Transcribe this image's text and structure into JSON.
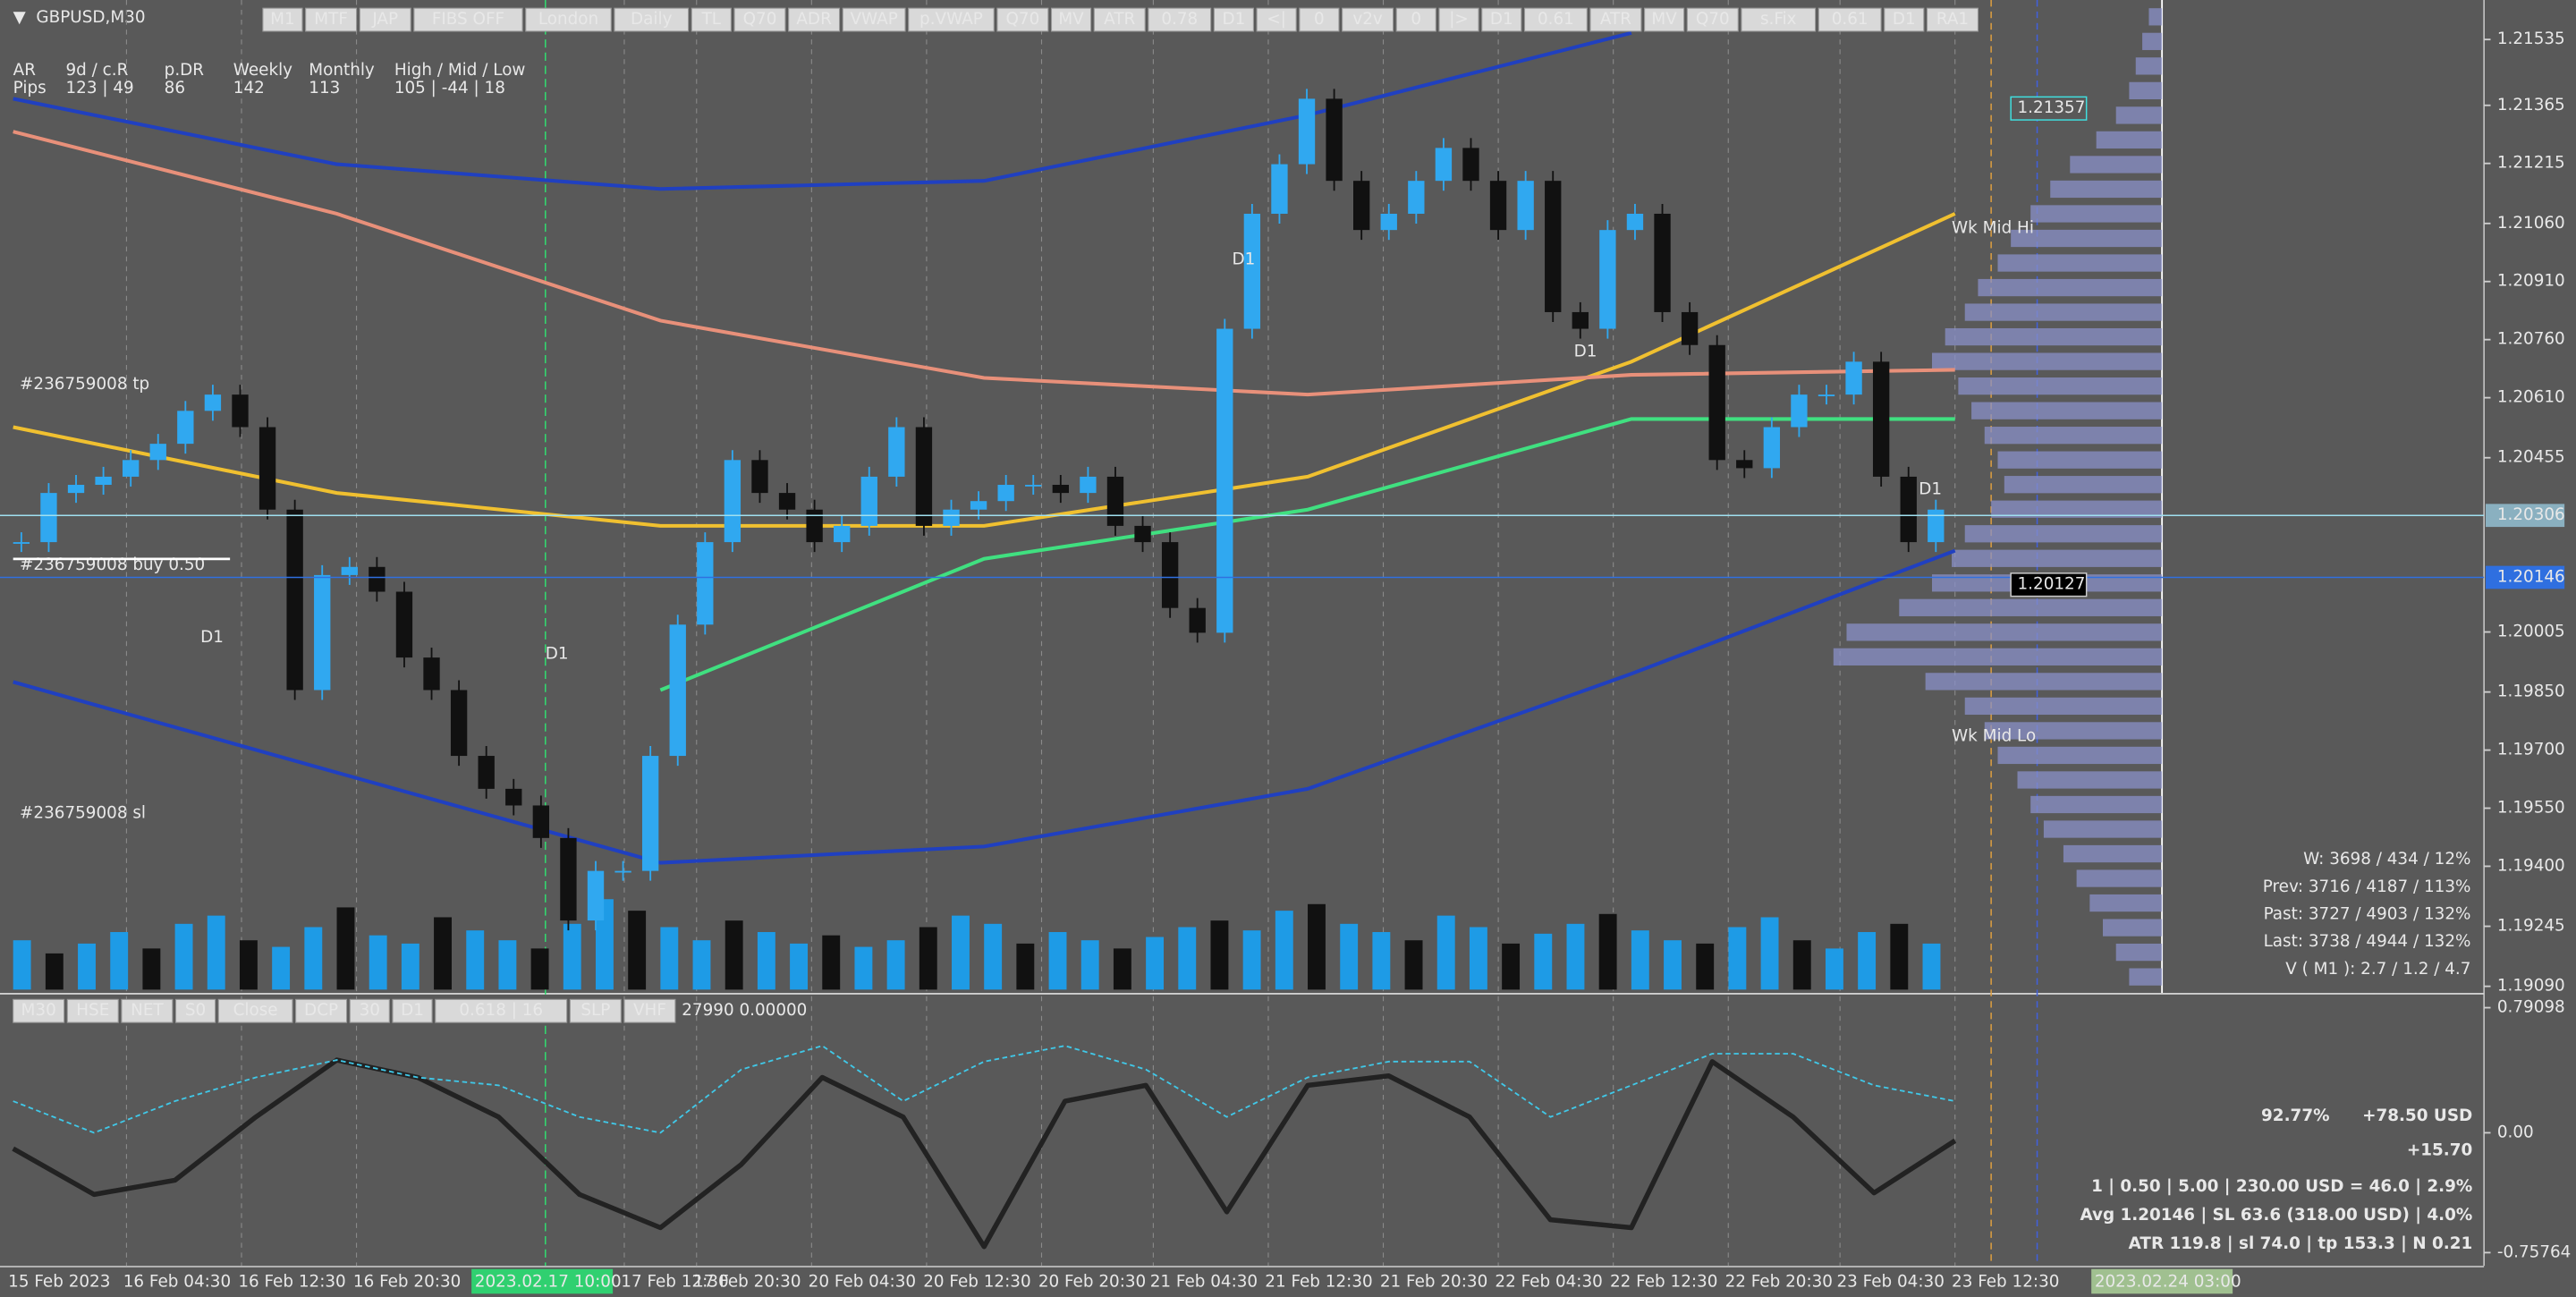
{
  "symbol": "GBPUSD,M30",
  "toolbar_top": [
    {
      "text": "M1",
      "color": "#000000"
    },
    {
      "text": "MTF",
      "color": "#777777"
    },
    {
      "text": "JAP",
      "color": "#d02020"
    },
    {
      "text": "FIBS OFF",
      "color": "#000000"
    },
    {
      "text": "London",
      "color": "#d02020"
    },
    {
      "text": "Daily",
      "color": "#d02020"
    },
    {
      "text": "TL",
      "color": "#000000"
    },
    {
      "text": "Q70",
      "color": "#000000"
    },
    {
      "text": "ADR",
      "color": "#d02020"
    },
    {
      "text": "VWAP",
      "color": "#d02020"
    },
    {
      "text": "p.VWAP",
      "color": "#000000"
    },
    {
      "text": "Q70",
      "color": "#1040d0"
    },
    {
      "text": "MV",
      "color": "#1040d0"
    },
    {
      "text": "ATR",
      "color": "#1040d0"
    },
    {
      "text": "0.78",
      "color": "#1040d0"
    },
    {
      "text": "D1",
      "color": "#1040d0"
    },
    {
      "text": "<|",
      "color": "#1040d0"
    },
    {
      "text": "0",
      "color": "#1040d0"
    },
    {
      "text": "v2v",
      "color": "#d02020"
    },
    {
      "text": "0",
      "color": "#108010"
    },
    {
      "text": "|>",
      "color": "#000000"
    },
    {
      "text": "D1",
      "color": "#108010"
    },
    {
      "text": "0.61",
      "color": "#108010"
    },
    {
      "text": "ATR",
      "color": "#108010"
    },
    {
      "text": "MV",
      "color": "#108010"
    },
    {
      "text": "Q70",
      "color": "#108010"
    },
    {
      "text": "s.Fix",
      "color": "#888888"
    },
    {
      "text": "0.61",
      "color": "#108010"
    },
    {
      "text": "D1",
      "color": "#d02020"
    },
    {
      "text": "RA1",
      "color": "#1040d0"
    }
  ],
  "toolbar_bottom": [
    {
      "text": "M30",
      "color": "#000000"
    },
    {
      "text": "HSE",
      "color": "#d02020"
    },
    {
      "text": "NET",
      "color": "#d02020"
    },
    {
      "text": "S0",
      "color": "#1040d0"
    },
    {
      "text": "Close",
      "color": "#1040d0"
    },
    {
      "text": "DCP",
      "color": "#777777"
    },
    {
      "text": "30",
      "color": "#000000"
    },
    {
      "text": "D1",
      "color": "#1040d0"
    },
    {
      "text": "0.618 | 16",
      "color": "#1040d0"
    },
    {
      "text": "SLP",
      "color": "#777777"
    },
    {
      "text": "VHF",
      "color": "#d02020"
    }
  ],
  "indicator_readout": "27990 0.00000",
  "stats": {
    "header": [
      "AR",
      "9d / c.R",
      "p.DR",
      "Weekly",
      "Monthly",
      "High / Mid / Low"
    ],
    "row": [
      "Pips",
      "123 | 49",
      "86",
      "142",
      "113",
      "105 | -44 | 18"
    ]
  },
  "annotations": {
    "tp": "#236759008 tp",
    "buy": "#236759008 buy 0.50",
    "sl": "#236759008 sl",
    "wk_mid_hi": "Wk Mid Hi",
    "wk_mid_lo": "Wk Mid Lo",
    "d1_labels": [
      "D1",
      "D1",
      "D1",
      "D1",
      "D1"
    ]
  },
  "price_boxes": [
    {
      "value": 1.21357,
      "bg": "#595959",
      "border": "#40e0e0",
      "color": "#40e0e0"
    },
    {
      "value": 1.20127,
      "bg": "#000000",
      "border": "#cccccc",
      "color": "#ffffff"
    }
  ],
  "current_price": 1.20306,
  "avg_price": 1.20146,
  "ylim": [
    1.19073,
    1.21637
  ],
  "yticks": [
    1.21535,
    1.21365,
    1.21215,
    {
      "value": 1.2106,
      "label": "1.21060"
    },
    {
      "value": 1.2091,
      "label": "1.20910"
    },
    {
      "value": 1.2076,
      "label": "1.20760"
    },
    {
      "value": 1.2061,
      "label": "1.20610"
    },
    1.20455,
    1.20005,
    {
      "value": 1.1985,
      "label": "1.19850"
    },
    {
      "value": 1.197,
      "label": "1.19700"
    },
    {
      "value": 1.1955,
      "label": "1.19550"
    },
    {
      "value": 1.194,
      "label": "1.19400"
    },
    1.19245,
    {
      "value": 1.1909,
      "label": "1.19090"
    }
  ],
  "closes": [
    1.20237,
    1.20364,
    1.20385,
    1.20406,
    1.20449,
    1.20491,
    1.20576,
    1.20618,
    1.20534,
    1.20321,
    1.19855,
    1.20152,
    1.20173,
    1.20109,
    1.19939,
    1.19855,
    1.19685,
    1.196,
    1.19557,
    1.19473,
    1.1926,
    1.19388,
    1.19388,
    1.19685,
    1.20024,
    1.20237,
    1.20449,
    1.20364,
    1.20321,
    1.20237,
    1.20279,
    1.20406,
    1.20534,
    1.20279,
    1.20321,
    1.20343,
    1.20385,
    1.20385,
    1.20364,
    1.20406,
    1.20279,
    1.20237,
    1.20067,
    1.20003,
    1.20788,
    1.21085,
    1.21213,
    1.21382,
    1.2117,
    1.21043,
    1.21085,
    1.2117,
    1.21255,
    1.2117,
    1.21043,
    1.2117,
    1.20831,
    1.20788,
    1.21043,
    1.21085,
    1.20831,
    1.20746,
    1.20449,
    1.20428,
    1.20534,
    1.20618,
    1.20618,
    1.20703,
    1.20406,
    1.20237,
    1.20321
  ],
  "ma_lines": [
    {
      "color": "#f0c030",
      "values": [
        1.20534,
        1.20364,
        1.20279,
        1.20279,
        1.20406,
        1.20703,
        1.21085
      ]
    },
    {
      "color": "#40e080",
      "values": [
        null,
        null,
        1.19855,
        1.20194,
        1.20321,
        1.20555,
        1.20555
      ]
    },
    {
      "color": "#2040c0",
      "values": [
        1.19876,
        1.19642,
        1.19409,
        1.19451,
        1.196,
        1.19897,
        1.20215
      ]
    },
    {
      "color": "#2040c0",
      "values": [
        1.21382,
        1.21213,
        1.21149,
        1.2117,
        1.2134,
        1.21552,
        null
      ]
    },
    {
      "color": "#e8907a",
      "values": [
        1.21297,
        1.21085,
        1.20809,
        1.20661,
        1.20618,
        1.20669,
        1.20682
      ]
    }
  ],
  "volume": {
    "color": "#1e9be6",
    "values": [
      30,
      22,
      28,
      35,
      25,
      40,
      45,
      30,
      26,
      38,
      50,
      33,
      28,
      44,
      36,
      30,
      25,
      40,
      55,
      48,
      38,
      30,
      42,
      35,
      28,
      33,
      26,
      30,
      38,
      45,
      40,
      28,
      35,
      30,
      25,
      32,
      38,
      42,
      36,
      48,
      52,
      40,
      35,
      30,
      45,
      38,
      28,
      34,
      40,
      46,
      36,
      30,
      28,
      38,
      44,
      30,
      25,
      35,
      40,
      28
    ]
  },
  "volume_profile": {
    "color": "#8a90c8",
    "values": [
      4,
      6,
      8,
      10,
      14,
      20,
      28,
      34,
      40,
      46,
      50,
      56,
      60,
      66,
      70,
      62,
      58,
      54,
      50,
      48,
      52,
      60,
      64,
      70,
      80,
      96,
      100,
      72,
      60,
      54,
      50,
      44,
      40,
      36,
      30,
      26,
      22,
      18,
      14,
      10
    ]
  },
  "volume_info": [
    "W: 3698 / 434 / 12%",
    "Prev: 3716 / 4187 / 113%",
    "Past: 3727 / 4903 / 132%",
    "Last: 3738 / 4944 / 132%",
    "V ( M1 ): 2.7 / 1.2 / 4.7"
  ],
  "trade": {
    "percent": "92.77%",
    "profit_usd": "+78.50 USD",
    "pips": "+15.70",
    "lines": [
      "1  |  0.50  |  5.00  |  230.00 USD = 46.0  |  2.9%",
      "Avg 1.20146  |  SL 63.6 (318.00 USD)  |  4.0%",
      "ATR 119.8  |  sl 74.0  |  tp 153.3  |  N 0.21"
    ]
  },
  "oscillator": {
    "ylim": [
      -0.8408,
      0.8637
    ],
    "yticks": [
      0.79098,
      {
        "value": 0,
        "label": "0.00"
      },
      -0.75764
    ],
    "series": [
      {
        "color": "#222222",
        "width": 3,
        "values": [
          -0.1,
          -0.39,
          -0.3,
          0.1,
          0.46,
          0.35,
          0.1,
          -0.39,
          -0.6,
          -0.2,
          0.35,
          0.1,
          -0.72,
          0.2,
          0.3,
          -0.5,
          0.3,
          0.36,
          0.1,
          -0.55,
          -0.6,
          0.45,
          0.1,
          -0.38,
          -0.05
        ]
      },
      {
        "color": "#40c8e8",
        "width": 1,
        "values": [
          0.2,
          0,
          0.2,
          0.35,
          0.46,
          0.35,
          0.3,
          0.1,
          0,
          0.4,
          0.55,
          0.2,
          0.45,
          0.55,
          0.4,
          0.1,
          0.35,
          0.45,
          0.45,
          0.1,
          0.3,
          0.5,
          0.5,
          0.3,
          0.2
        ]
      }
    ]
  },
  "time_labels": [
    "15 Feb 2023",
    "16 Feb 04:30",
    "16 Feb 12:30",
    "16 Feb 20:30",
    "2023.02.17 10:00",
    "17 Feb 12:30",
    "17 Feb 20:30",
    "20 Feb 04:30",
    "20 Feb 12:30",
    "20 Feb 20:30",
    "21 Feb 04:30",
    "21 Feb 12:30",
    "21 Feb 20:30",
    "22 Feb 04:30",
    "22 Feb 12:30",
    "22 Feb 20:30",
    "23 Feb 04:30",
    "23 Feb 12:30",
    "2023.02.24 03:00"
  ]
}
